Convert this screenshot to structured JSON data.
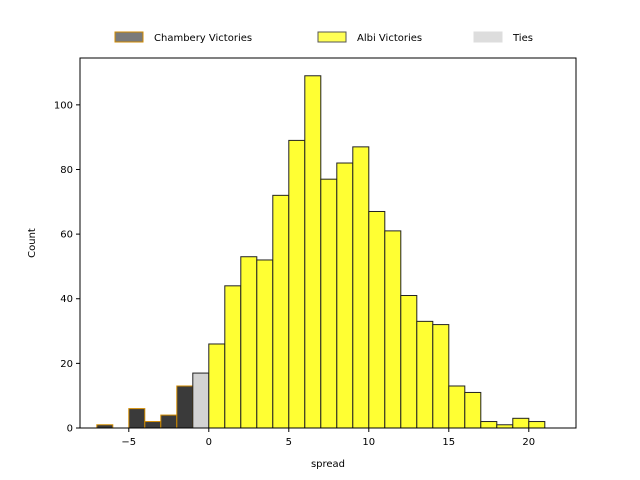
{
  "chart_data": {
    "type": "bar",
    "xlabel": "spread",
    "ylabel": "Count",
    "xlim": [
      -8.05,
      22.95
    ],
    "ylim": [
      0,
      114.5
    ],
    "x_ticks": [
      -5,
      0,
      5,
      10,
      15,
      20
    ],
    "y_ticks": [
      0,
      20,
      40,
      60,
      80,
      100
    ],
    "bin_width": 1,
    "legend": {
      "placement": "top-center",
      "entries": [
        {
          "name": "Chambery Victories",
          "color": "#7a7a7a",
          "edge": "#d08a00"
        },
        {
          "name": "Albi Victories",
          "color": "#ffff55",
          "edge": "#555555"
        },
        {
          "name": "Ties",
          "color": "#dddddd",
          "edge": "#dddddd"
        }
      ]
    },
    "series": [
      {
        "name": "Chambery Victories",
        "color": "#3a3a3a",
        "edge": "#d08a00",
        "bins": [
          {
            "x": -6.5,
            "count": 1
          },
          {
            "x": -4.5,
            "count": 6
          },
          {
            "x": -3.5,
            "count": 2
          },
          {
            "x": -2.5,
            "count": 4
          },
          {
            "x": -1.5,
            "count": 13
          }
        ]
      },
      {
        "name": "Ties",
        "color": "#d3d3d3",
        "edge": "#222222",
        "bins": [
          {
            "x": -0.5,
            "count": 17
          }
        ]
      },
      {
        "name": "Albi Victories",
        "color": "#ffff33",
        "edge": "#222222",
        "bins": [
          {
            "x": 0.5,
            "count": 26
          },
          {
            "x": 1.5,
            "count": 44
          },
          {
            "x": 2.5,
            "count": 53
          },
          {
            "x": 3.5,
            "count": 52
          },
          {
            "x": 4.5,
            "count": 72
          },
          {
            "x": 5.5,
            "count": 89
          },
          {
            "x": 6.5,
            "count": 109
          },
          {
            "x": 7.5,
            "count": 77
          },
          {
            "x": 8.5,
            "count": 82
          },
          {
            "x": 9.5,
            "count": 87
          },
          {
            "x": 10.5,
            "count": 67
          },
          {
            "x": 11.5,
            "count": 61
          },
          {
            "x": 12.5,
            "count": 41
          },
          {
            "x": 13.5,
            "count": 33
          },
          {
            "x": 14.5,
            "count": 32
          },
          {
            "x": 15.5,
            "count": 13
          },
          {
            "x": 16.5,
            "count": 11
          },
          {
            "x": 17.5,
            "count": 2
          },
          {
            "x": 18.5,
            "count": 1
          },
          {
            "x": 19.5,
            "count": 3
          },
          {
            "x": 20.5,
            "count": 2
          }
        ]
      }
    ]
  }
}
